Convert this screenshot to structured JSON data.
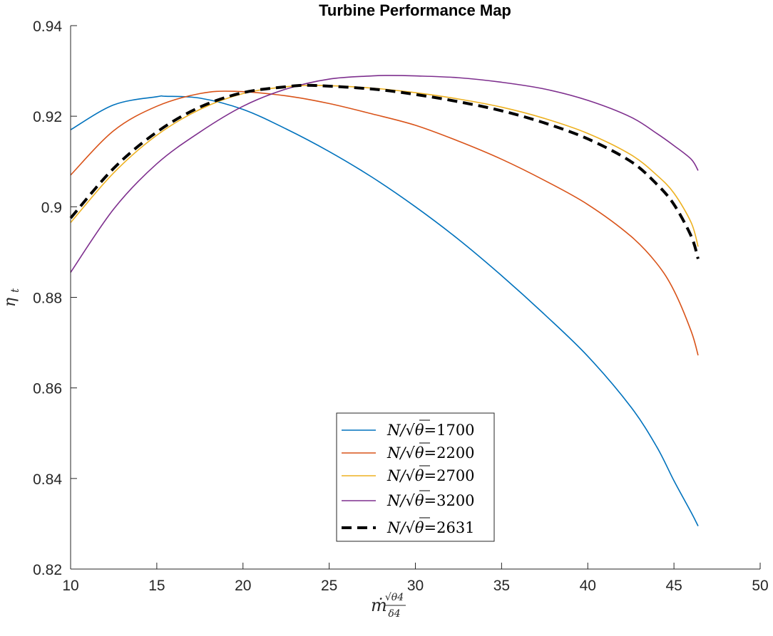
{
  "chart_data": {
    "type": "line",
    "title": "Turbine Performance Map",
    "xlabel_main": "ṁ",
    "xlabel_num": "√θ4",
    "xlabel_den": "δ4",
    "ylabel": "ηt",
    "xlim": [
      10,
      50
    ],
    "ylim": [
      0.82,
      0.94
    ],
    "xticks": [
      10,
      15,
      20,
      25,
      30,
      35,
      40,
      45,
      50
    ],
    "xtick_labels": [
      "10",
      "15",
      "20",
      "25",
      "30",
      "35",
      "40",
      "45",
      "50"
    ],
    "yticks": [
      0.82,
      0.84,
      0.86,
      0.88,
      0.9,
      0.92,
      0.94
    ],
    "ytick_labels": [
      "0.82",
      "0.84",
      "0.86",
      "0.88",
      "0.9",
      "0.92",
      "0.94"
    ],
    "grid": false,
    "legend_position": "bottom-center",
    "series": [
      {
        "name": "N/√θ=1700",
        "label_prefix": "N/",
        "label_root": "θ",
        "label_value": "=1700",
        "color": "#0072BD",
        "style": "solid",
        "x": [
          10,
          12.5,
          15,
          15.5,
          17.5,
          20,
          22.5,
          25,
          27.5,
          30,
          32.5,
          35,
          37.5,
          40,
          42.5,
          44,
          45,
          46,
          46.4
        ],
        "y": [
          0.917,
          0.9225,
          0.9243,
          0.9244,
          0.924,
          0.9215,
          0.9172,
          0.9122,
          0.9065,
          0.9,
          0.8928,
          0.8848,
          0.8762,
          0.867,
          0.8558,
          0.847,
          0.8395,
          0.8325,
          0.8295
        ]
      },
      {
        "name": "N/√θ=2200",
        "label_prefix": "N/",
        "label_root": "θ",
        "label_value": "=2200",
        "color": "#D95319",
        "style": "solid",
        "x": [
          10,
          12.5,
          15,
          17.5,
          19.5,
          22.5,
          25,
          27.5,
          30,
          32.5,
          35,
          37.5,
          40,
          42.5,
          44,
          45,
          46,
          46.4
        ],
        "y": [
          0.907,
          0.9168,
          0.9222,
          0.925,
          0.9255,
          0.9245,
          0.9228,
          0.9205,
          0.918,
          0.9145,
          0.9105,
          0.9058,
          0.9005,
          0.8935,
          0.8875,
          0.8815,
          0.8725,
          0.8672
        ]
      },
      {
        "name": "N/√θ=2700",
        "label_prefix": "N/",
        "label_root": "θ",
        "label_value": "=2700",
        "color": "#EDB120",
        "style": "solid",
        "x": [
          10,
          12.5,
          15,
          17.5,
          20,
          22.5,
          24.5,
          27.5,
          30,
          32.5,
          35,
          37.5,
          40,
          42.5,
          44,
          45,
          46,
          46.4
        ],
        "y": [
          0.8965,
          0.9075,
          0.9158,
          0.9215,
          0.925,
          0.9265,
          0.9268,
          0.9262,
          0.9252,
          0.9238,
          0.922,
          0.9195,
          0.9162,
          0.9115,
          0.907,
          0.903,
          0.8965,
          0.8912
        ]
      },
      {
        "name": "N/√θ=3200",
        "label_prefix": "N/",
        "label_root": "θ",
        "label_value": "=3200",
        "color": "#7E2F8E",
        "style": "solid",
        "x": [
          10,
          12.5,
          15,
          17.5,
          20,
          22.5,
          25,
          27.5,
          28.5,
          30,
          32.5,
          35,
          37.5,
          40,
          42.5,
          44,
          45,
          46,
          46.4
        ],
        "y": [
          0.8855,
          0.8995,
          0.9095,
          0.9165,
          0.9222,
          0.926,
          0.9282,
          0.9289,
          0.929,
          0.9289,
          0.9285,
          0.9275,
          0.926,
          0.9235,
          0.9198,
          0.9162,
          0.9135,
          0.9105,
          0.908
        ]
      },
      {
        "name": "N/√θ=2631",
        "label_prefix": "N/",
        "label_root": "θ",
        "label_value": "=2631",
        "color": "#000000",
        "style": "dashed",
        "x": [
          10,
          12.5,
          15,
          17.5,
          20,
          22.5,
          24,
          27.5,
          30,
          32.5,
          35,
          37.5,
          40,
          42.5,
          44,
          45,
          46,
          46.4
        ],
        "y": [
          0.8975,
          0.9085,
          0.9165,
          0.922,
          0.9252,
          0.9265,
          0.9268,
          0.926,
          0.9248,
          0.9232,
          0.9212,
          0.9185,
          0.915,
          0.91,
          0.905,
          0.9005,
          0.8935,
          0.8885
        ]
      }
    ]
  }
}
